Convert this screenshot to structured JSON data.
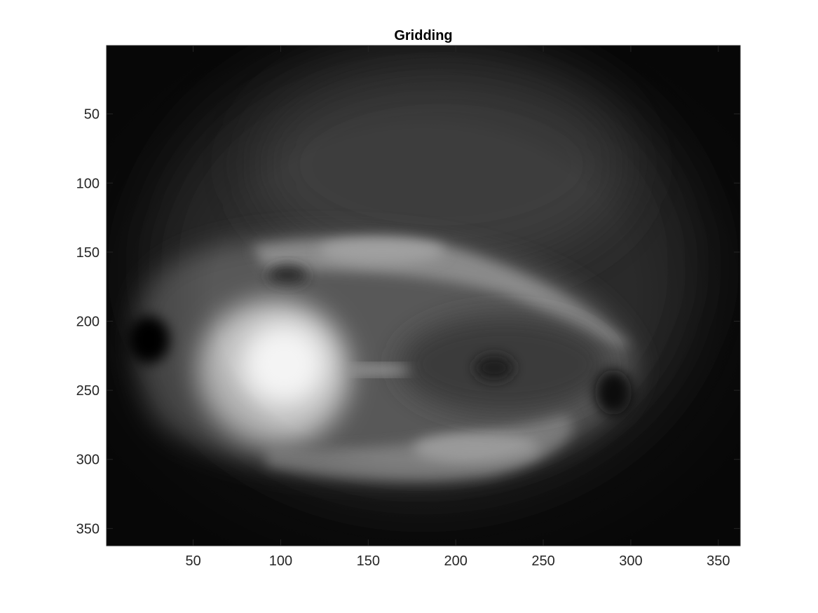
{
  "chart_data": {
    "type": "heatmap",
    "title": "Gridding",
    "xlabel": "",
    "ylabel": "",
    "colormap": "gray",
    "xlim": [
      0.5,
      362.5
    ],
    "ylim": [
      0.5,
      362.5
    ],
    "y_direction": "reverse",
    "grid": false,
    "xticks": [
      50,
      100,
      150,
      200,
      250,
      300,
      350
    ],
    "yticks": [
      50,
      100,
      150,
      200,
      250,
      300,
      350
    ],
    "xtick_labels": [
      "50",
      "100",
      "150",
      "200",
      "250",
      "300",
      "350"
    ],
    "ytick_labels": [
      "50",
      "100",
      "150",
      "200",
      "250",
      "300",
      "350"
    ],
    "features": [
      {
        "kind": "bright-blob",
        "x": 105,
        "y": 235,
        "intensity": 0.95
      },
      {
        "kind": "bright-band",
        "x": 150,
        "y": 152,
        "intensity": 0.6
      },
      {
        "kind": "bright-band",
        "x": 250,
        "y": 200,
        "intensity": 0.45
      },
      {
        "kind": "bright-band",
        "x": 230,
        "y": 300,
        "intensity": 0.5
      },
      {
        "kind": "dark-spot",
        "x": 25,
        "y": 213,
        "intensity": 0.02
      },
      {
        "kind": "dark-spot",
        "x": 222,
        "y": 235,
        "intensity": 0.1
      },
      {
        "kind": "dark-spot",
        "x": 290,
        "y": 255,
        "intensity": 0.05
      },
      {
        "kind": "dark-spot",
        "x": 105,
        "y": 167,
        "intensity": 0.12
      }
    ]
  }
}
